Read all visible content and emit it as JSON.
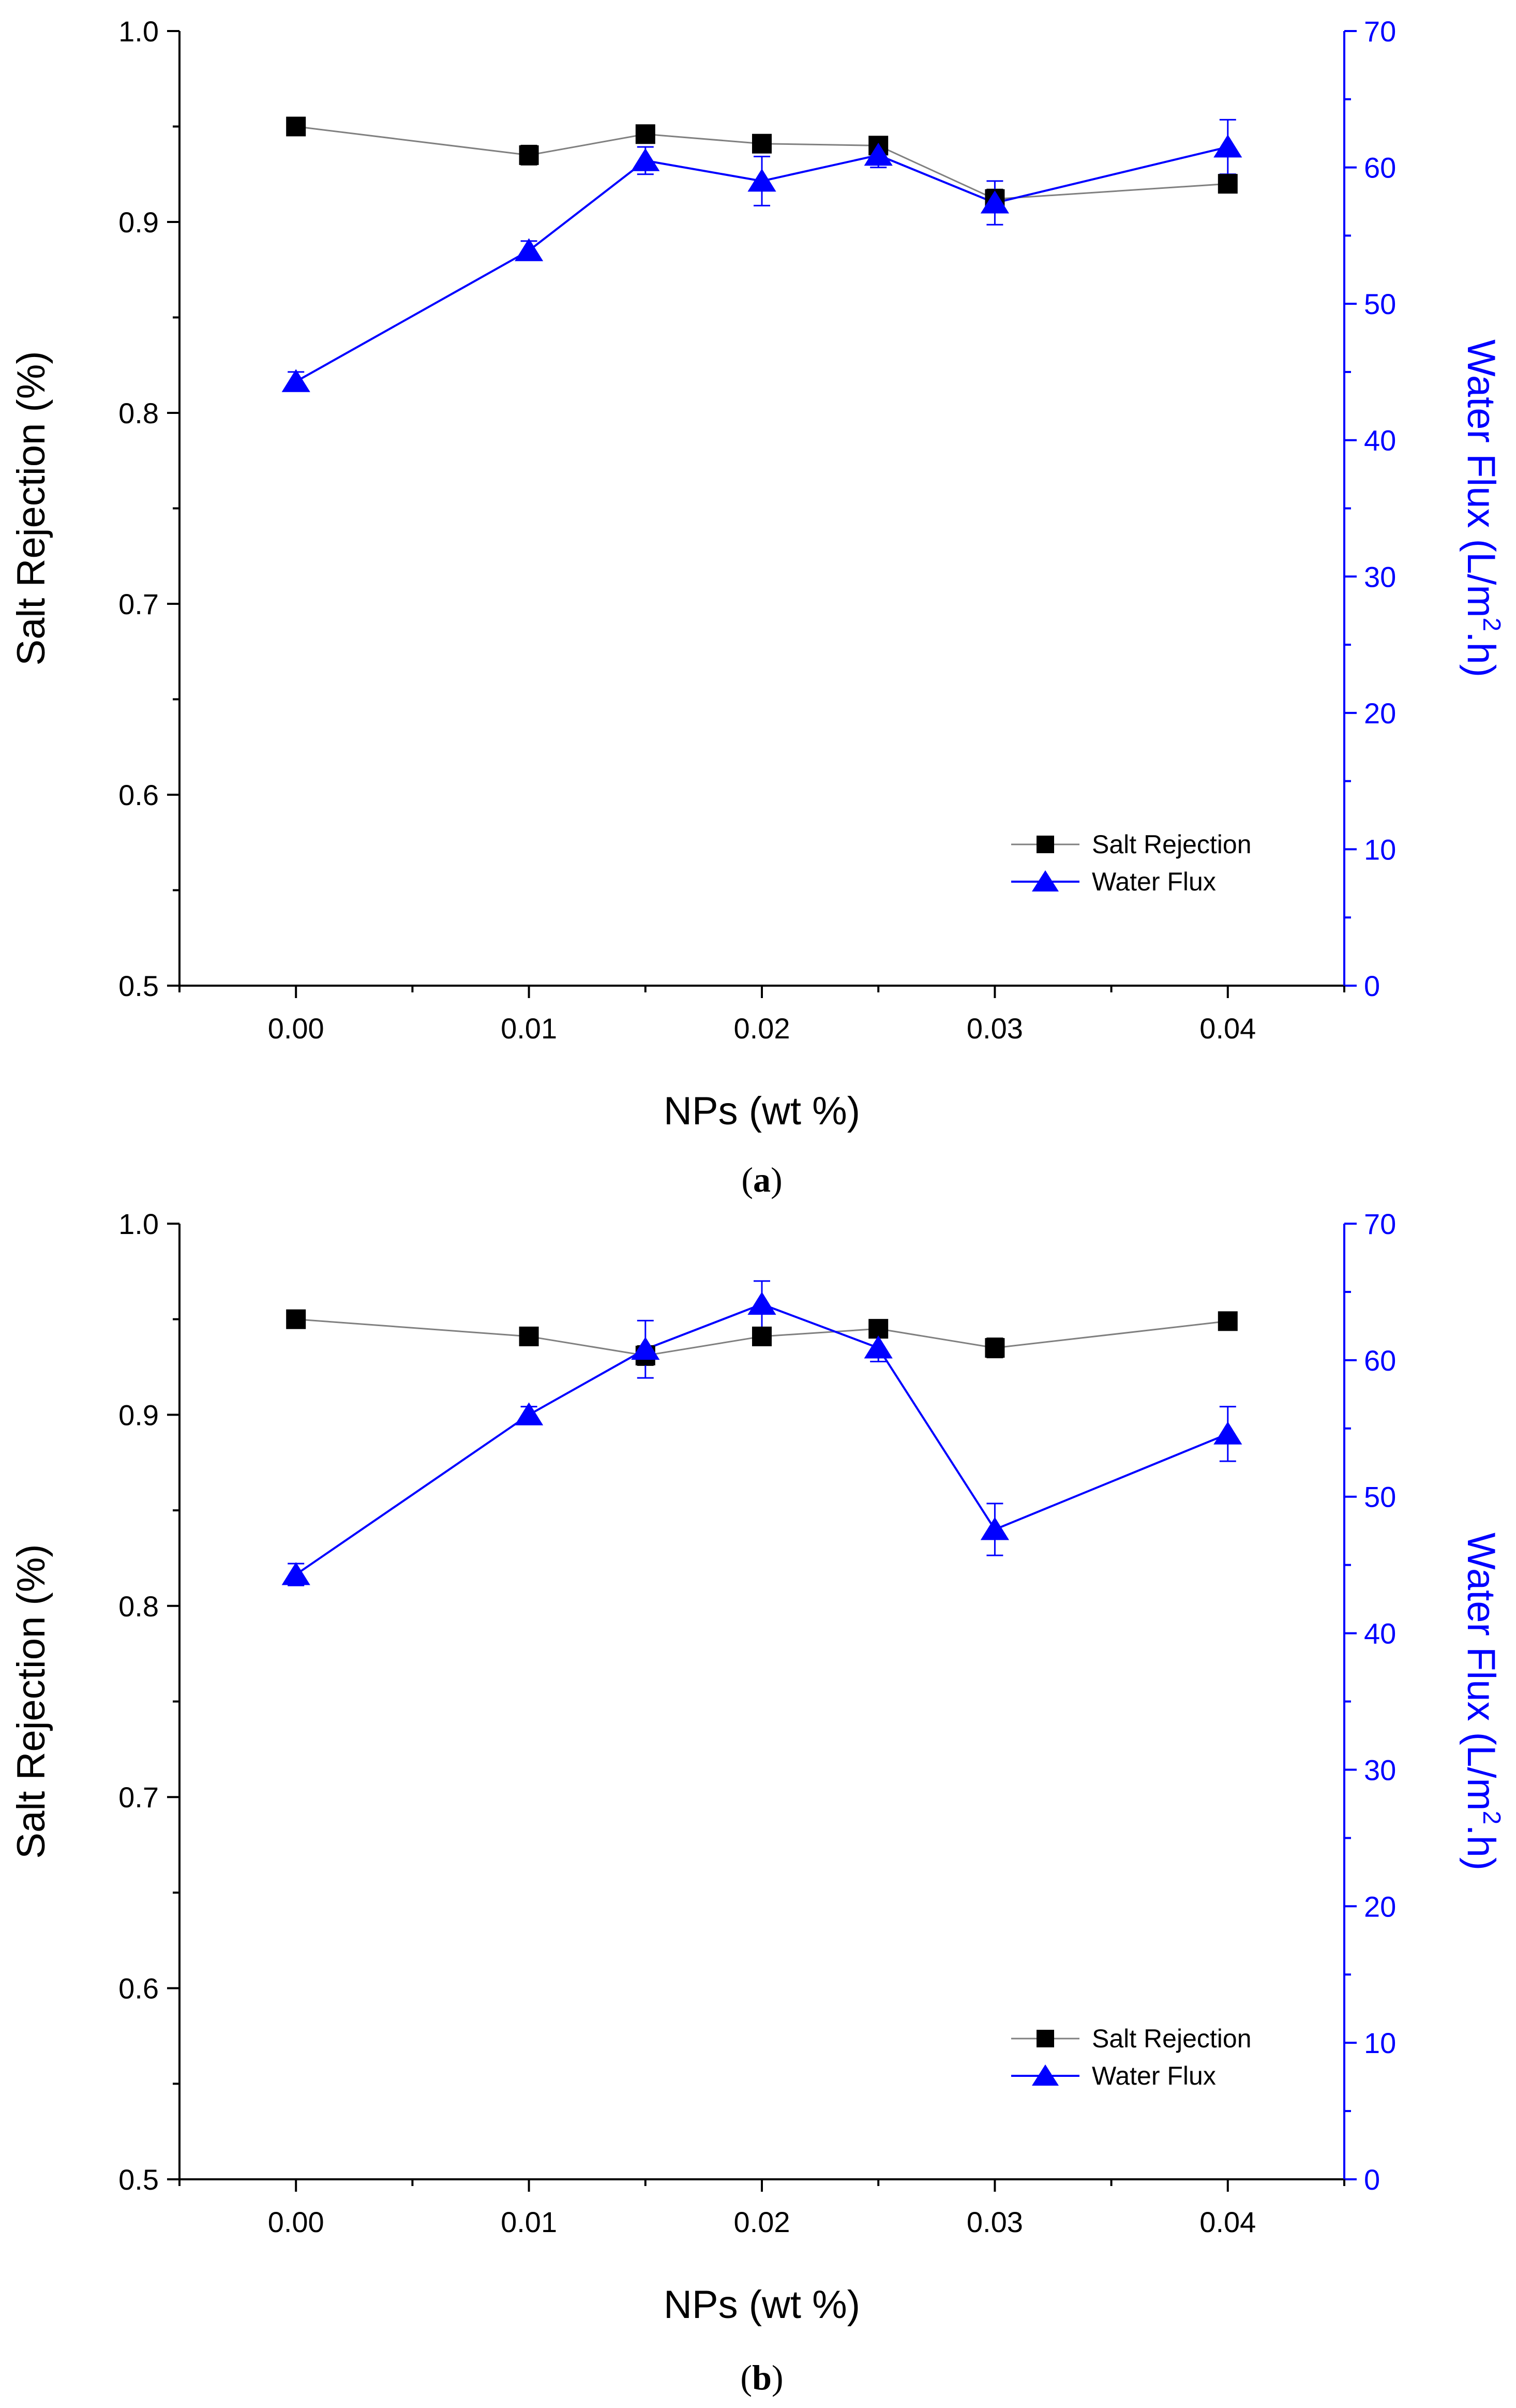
{
  "colors": {
    "left_axis": "#000000",
    "right_axis": "#0000ff",
    "salt_series": "#000000",
    "flux_series": "#0000ff",
    "salt_line": "#808080",
    "background": "#ffffff"
  },
  "chart_data": [
    {
      "type": "line",
      "panel_caption": "a",
      "caption_open": "(",
      "caption_close": ")",
      "xlabel": "NPs (wt %)",
      "ylabel": "Salt Rejection (%)",
      "y2label": "Water Flux (L/m².h)",
      "y2label_parts": {
        "before": "Water Flux (L/m",
        "sup": "2",
        "after": ".h)"
      },
      "xlim": [
        -0.005,
        0.045
      ],
      "ylim": [
        0.5,
        1.0
      ],
      "y2lim": [
        0,
        70
      ],
      "xticks": [
        "0.00",
        "0.01",
        "0.02",
        "0.03",
        "0.04"
      ],
      "yticks": [
        "0.5",
        "0.6",
        "0.7",
        "0.8",
        "0.9",
        "1.0"
      ],
      "y2ticks": [
        "0",
        "10",
        "20",
        "30",
        "40",
        "50",
        "60",
        "70"
      ],
      "legend_position": "bottom-right",
      "series": [
        {
          "name": "Salt Rejection",
          "axis": "left",
          "marker": "square",
          "x": [
            0.0,
            0.01,
            0.015,
            0.02,
            0.025,
            0.03,
            0.04
          ],
          "y": [
            0.95,
            0.935,
            0.946,
            0.941,
            0.94,
            0.912,
            0.92
          ],
          "error": [
            0.004,
            0.005,
            0.003,
            0.003,
            0.003,
            0.005,
            0.003
          ]
        },
        {
          "name": "Water Flux",
          "axis": "right",
          "marker": "triangle",
          "x": [
            0.0,
            0.01,
            0.015,
            0.02,
            0.025,
            0.03,
            0.04
          ],
          "y": [
            44.3,
            53.9,
            60.5,
            59.0,
            60.9,
            57.4,
            61.5
          ],
          "error": [
            0.7,
            0.7,
            1.0,
            1.8,
            0.9,
            1.6,
            2.0
          ]
        }
      ]
    },
    {
      "type": "line",
      "panel_caption": "b",
      "caption_open": "(",
      "caption_close": ")",
      "xlabel": "NPs (wt %)",
      "ylabel": "Salt Rejection (%)",
      "y2label": "Water Flux (L/m².h)",
      "y2label_parts": {
        "before": "Water Flux (L/m",
        "sup": "2",
        "after": ".h)"
      },
      "xlim": [
        -0.005,
        0.045
      ],
      "ylim": [
        0.5,
        1.0
      ],
      "y2lim": [
        0,
        70
      ],
      "xticks": [
        "0.00",
        "0.01",
        "0.02",
        "0.03",
        "0.04"
      ],
      "yticks": [
        "0.5",
        "0.6",
        "0.7",
        "0.8",
        "0.9",
        "1.0"
      ],
      "y2ticks": [
        "0",
        "10",
        "20",
        "30",
        "40",
        "50",
        "60",
        "70"
      ],
      "legend_position": "bottom-right",
      "series": [
        {
          "name": "Salt Rejection",
          "axis": "left",
          "marker": "square",
          "x": [
            0.0,
            0.01,
            0.015,
            0.02,
            0.025,
            0.03,
            0.04
          ],
          "y": [
            0.95,
            0.941,
            0.931,
            0.941,
            0.945,
            0.935,
            0.949
          ],
          "error": [
            0.004,
            0.003,
            0.005,
            0.003,
            0.003,
            0.005,
            0.003
          ]
        },
        {
          "name": "Water Flux",
          "axis": "right",
          "marker": "triangle",
          "x": [
            0.0,
            0.01,
            0.015,
            0.02,
            0.025,
            0.03,
            0.04
          ],
          "y": [
            44.3,
            56.0,
            60.8,
            64.1,
            60.9,
            47.6,
            54.6
          ],
          "error": [
            0.8,
            0.6,
            2.1,
            1.7,
            1.0,
            1.9,
            2.0
          ]
        }
      ]
    }
  ]
}
